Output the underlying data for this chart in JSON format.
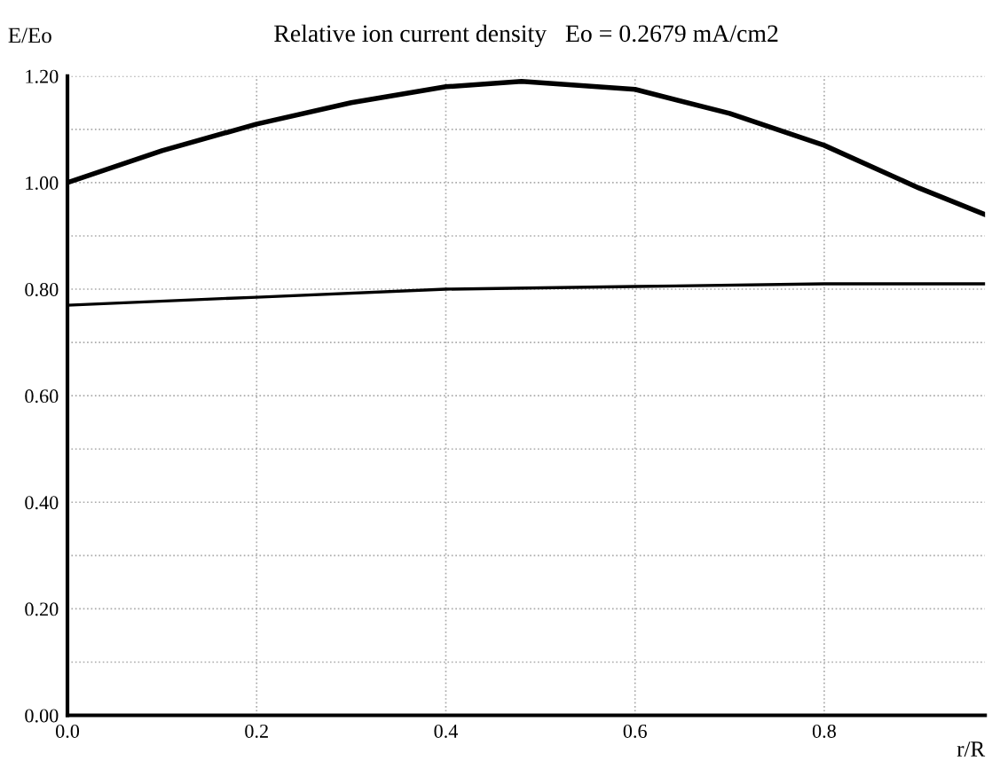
{
  "chart_data": {
    "type": "line",
    "title": "Relative ion current density   Eo = 0.2679 mA/cm2",
    "xlabel": "r/R",
    "ylabel": "E/Eo",
    "xlim": [
      0,
      0.97
    ],
    "ylim": [
      0,
      1.2
    ],
    "xticks": [
      {
        "value": 0,
        "label": "0.0"
      },
      {
        "value": 0.2,
        "label": "0.2"
      },
      {
        "value": 0.4,
        "label": "0.4"
      },
      {
        "value": 0.6,
        "label": "0.6"
      },
      {
        "value": 0.8,
        "label": "0.8"
      }
    ],
    "yticks": [
      {
        "value": 0,
        "label": "0.00"
      },
      {
        "value": 0.1,
        "label": null
      },
      {
        "value": 0.2,
        "label": "0.20"
      },
      {
        "value": 0.3,
        "label": null
      },
      {
        "value": 0.4,
        "label": "0.40"
      },
      {
        "value": 0.5,
        "label": null
      },
      {
        "value": 0.6,
        "label": "0.60"
      },
      {
        "value": 0.7,
        "label": null
      },
      {
        "value": 0.8,
        "label": "0.80"
      },
      {
        "value": 0.9,
        "label": null
      },
      {
        "value": 1.0,
        "label": "1.00"
      },
      {
        "value": 1.1,
        "label": null
      },
      {
        "value": 1.2,
        "label": "1.20"
      }
    ],
    "grid": true,
    "marker": "none",
    "line_style": "solid",
    "series": [
      {
        "color": "#000000",
        "x": [
          0,
          0.1,
          0.2,
          0.3,
          0.4,
          0.48,
          0.6,
          0.7,
          0.8,
          0.9,
          0.97
        ],
        "values": [
          1.0,
          1.06,
          1.11,
          1.15,
          1.18,
          1.19,
          1.175,
          1.13,
          1.07,
          0.99,
          0.94
        ]
      },
      {
        "color": "#000000",
        "x": [
          0,
          0.2,
          0.4,
          0.6,
          0.8,
          0.97
        ],
        "values": [
          0.77,
          0.785,
          0.8,
          0.805,
          0.81,
          0.81
        ]
      }
    ]
  }
}
